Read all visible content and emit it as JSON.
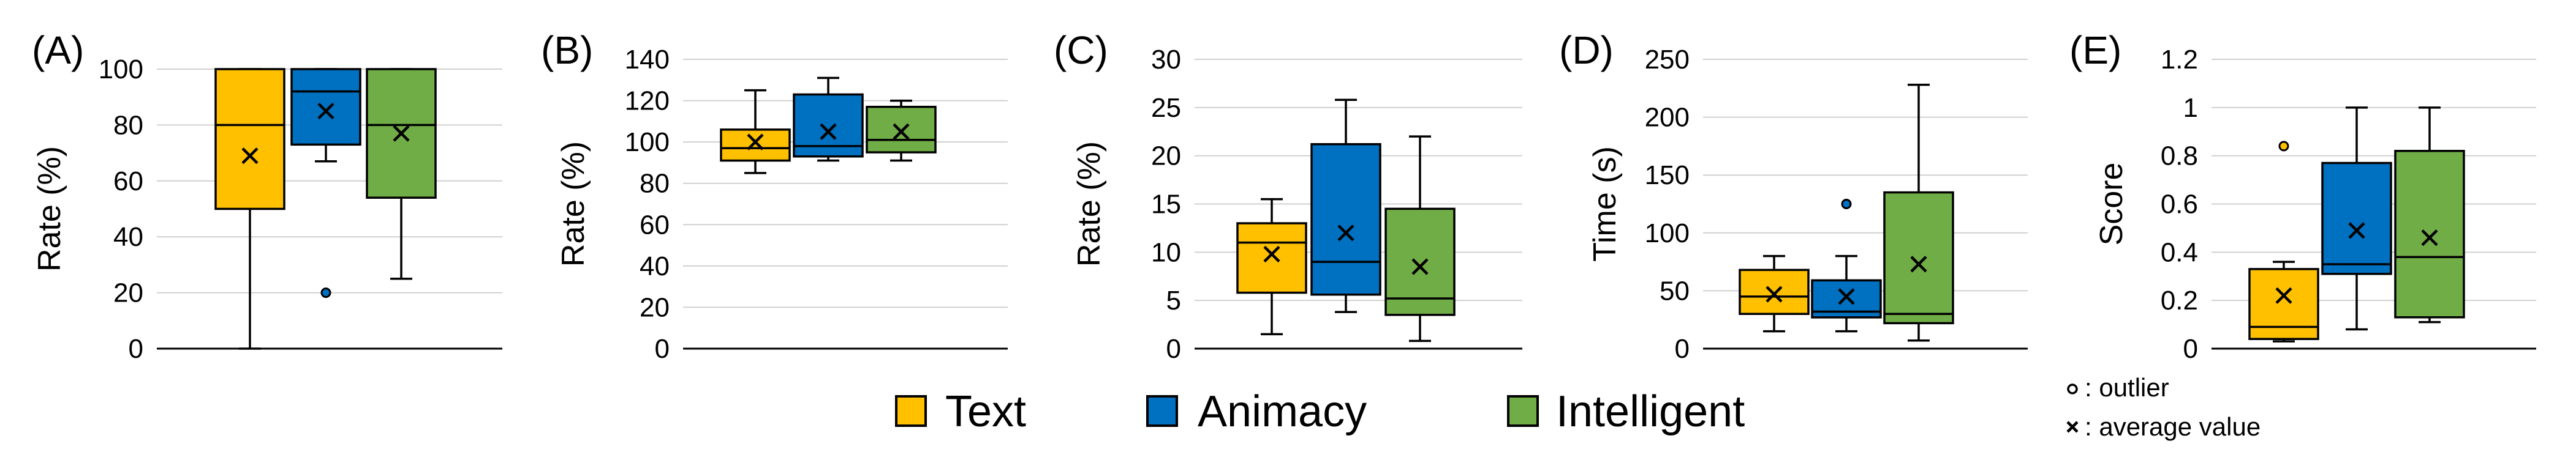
{
  "legend": {
    "items": [
      {
        "name": "Text",
        "color": "#FFC000"
      },
      {
        "name": "Animacy",
        "color": "#0070C0"
      },
      {
        "name": "Intelligent",
        "color": "#70AD47"
      }
    ],
    "outlier_label": ": outlier",
    "average_label": ": average value"
  },
  "chart_data": [
    {
      "panel": "(A)",
      "type": "box",
      "ylabel": "Rate (%)",
      "ylim": [
        0,
        100
      ],
      "yticks": [
        0,
        20,
        40,
        60,
        80,
        100
      ],
      "series": [
        {
          "name": "Text",
          "min": 0,
          "q1": 50,
          "median": 80,
          "q3": 100,
          "max": 100,
          "mean": 69,
          "outliers": []
        },
        {
          "name": "Animacy",
          "min": 67,
          "q1": 73,
          "median": 92,
          "q3": 100,
          "max": 100,
          "mean": 85,
          "outliers": [
            20
          ]
        },
        {
          "name": "Intelligent",
          "min": 25,
          "q1": 54,
          "median": 80,
          "q3": 100,
          "max": 100,
          "mean": 77,
          "outliers": []
        }
      ]
    },
    {
      "panel": "(B)",
      "type": "box",
      "ylabel": "Rate (%)",
      "ylim": [
        0,
        140
      ],
      "yticks": [
        0,
        20,
        40,
        60,
        80,
        100,
        120,
        140
      ],
      "series": [
        {
          "name": "Text",
          "min": 85,
          "q1": 91,
          "median": 97,
          "q3": 106,
          "max": 125,
          "mean": 100,
          "outliers": []
        },
        {
          "name": "Animacy",
          "min": 91,
          "q1": 93,
          "median": 98,
          "q3": 123,
          "max": 131,
          "mean": 105,
          "outliers": []
        },
        {
          "name": "Intelligent",
          "min": 91,
          "q1": 95,
          "median": 101,
          "q3": 117,
          "max": 120,
          "mean": 105,
          "outliers": []
        }
      ]
    },
    {
      "panel": "(C)",
      "type": "box",
      "ylabel": "Rate (%)",
      "ylim": [
        0,
        30
      ],
      "yticks": [
        0,
        5,
        10,
        15,
        20,
        25,
        30
      ],
      "series": [
        {
          "name": "Text",
          "min": 1.5,
          "q1": 5.8,
          "median": 11,
          "q3": 13,
          "max": 15.5,
          "mean": 9.8,
          "outliers": []
        },
        {
          "name": "Animacy",
          "min": 3.8,
          "q1": 5.6,
          "median": 9,
          "q3": 21.2,
          "max": 25.8,
          "mean": 12,
          "outliers": []
        },
        {
          "name": "Intelligent",
          "min": 0.8,
          "q1": 3.5,
          "median": 5.2,
          "q3": 14.5,
          "max": 22,
          "mean": 8.5,
          "outliers": []
        }
      ]
    },
    {
      "panel": "(D)",
      "type": "box",
      "ylabel": "Time (s)",
      "ylim": [
        0,
        250
      ],
      "yticks": [
        0,
        50,
        100,
        150,
        200,
        250
      ],
      "series": [
        {
          "name": "Text",
          "min": 15,
          "q1": 30,
          "median": 45,
          "q3": 68,
          "max": 80,
          "mean": 47,
          "outliers": []
        },
        {
          "name": "Animacy",
          "min": 15,
          "q1": 27,
          "median": 32,
          "q3": 59,
          "max": 80,
          "mean": 45,
          "outliers": [
            125
          ]
        },
        {
          "name": "Intelligent",
          "min": 7,
          "q1": 22,
          "median": 30,
          "q3": 135,
          "max": 228,
          "mean": 73,
          "outliers": []
        }
      ]
    },
    {
      "panel": "(E)",
      "type": "box",
      "ylabel": "Score",
      "ylim": [
        0,
        1.2
      ],
      "yticks": [
        "0",
        "0.2",
        "0.4",
        "0.6",
        "0.8",
        "1",
        "1.2"
      ],
      "series": [
        {
          "name": "Text",
          "min": 0.03,
          "q1": 0.04,
          "median": 0.09,
          "q3": 0.33,
          "max": 0.36,
          "mean": 0.22,
          "outliers": [
            0.84
          ]
        },
        {
          "name": "Animacy",
          "min": 0.08,
          "q1": 0.31,
          "median": 0.35,
          "q3": 0.77,
          "max": 1.0,
          "mean": 0.49,
          "outliers": []
        },
        {
          "name": "Intelligent",
          "min": 0.11,
          "q1": 0.13,
          "median": 0.38,
          "q3": 0.82,
          "max": 1.0,
          "mean": 0.46,
          "outliers": []
        }
      ]
    }
  ]
}
